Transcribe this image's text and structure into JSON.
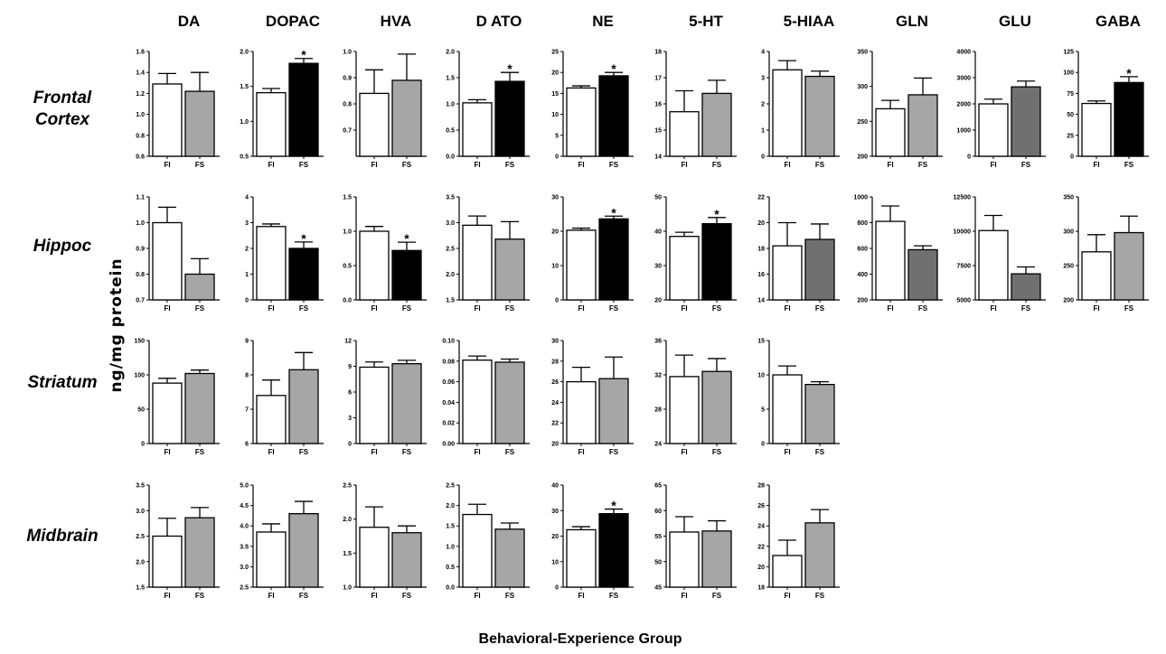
{
  "figure": {
    "ylabel": "ng/mg protein",
    "xlabel": "Behavioral-Experience Group",
    "columns": [
      "DA",
      "DOPAC",
      "HVA",
      "D ATO",
      "NE",
      "5-HT",
      "5-HIAA",
      "GLN",
      "GLU",
      "GABA"
    ],
    "rows": [
      "Frontal Cortex",
      "Hippoc",
      "Striatum",
      "Midbrain"
    ],
    "colors": {
      "FI": "#ffffff",
      "FS_ns": "#a6a6a6",
      "FS_dark": "#707070",
      "FS_sig": "#000000"
    }
  },
  "chart_data": [
    {
      "type": "bar",
      "row": "Frontal Cortex",
      "measure": "DA",
      "categories": [
        "FI",
        "FS"
      ],
      "values": [
        1.29,
        1.22
      ],
      "errors": [
        0.1,
        0.18
      ],
      "ylim": [
        0.6,
        1.6
      ],
      "yticks": [
        "0.6",
        "0.8",
        "1.0",
        "1.2",
        "1.4",
        "1.6"
      ],
      "significant": false,
      "fs_color": "#a6a6a6"
    },
    {
      "type": "bar",
      "row": "Frontal Cortex",
      "measure": "DOPAC",
      "categories": [
        "FI",
        "FS"
      ],
      "values": [
        1.41,
        1.83
      ],
      "errors": [
        0.06,
        0.07
      ],
      "ylim": [
        0.5,
        2.0
      ],
      "yticks": [
        "0.5",
        "1.0",
        "1.5",
        "2.0"
      ],
      "significant": true,
      "fs_color": "#000000"
    },
    {
      "type": "bar",
      "row": "Frontal Cortex",
      "measure": "HVA",
      "categories": [
        "FI",
        "FS"
      ],
      "values": [
        0.84,
        0.89
      ],
      "errors": [
        0.09,
        0.1
      ],
      "ylim": [
        0.6,
        1.0
      ],
      "yticks": [
        "0.7",
        "0.8",
        "0.9",
        "1.0"
      ],
      "significant": false,
      "fs_color": "#a6a6a6"
    },
    {
      "type": "bar",
      "row": "Frontal Cortex",
      "measure": "D ATO",
      "categories": [
        "FI",
        "FS"
      ],
      "values": [
        1.02,
        1.43
      ],
      "errors": [
        0.06,
        0.17
      ],
      "ylim": [
        0.0,
        2.0
      ],
      "yticks": [
        "0.0",
        "0.5",
        "1.0",
        "1.5",
        "2.0"
      ],
      "significant": true,
      "fs_color": "#000000"
    },
    {
      "type": "bar",
      "row": "Frontal Cortex",
      "measure": "NE",
      "categories": [
        "FI",
        "FS"
      ],
      "values": [
        16.3,
        19.2
      ],
      "errors": [
        0.5,
        0.8
      ],
      "ylim": [
        0,
        25
      ],
      "yticks": [
        "0",
        "5",
        "10",
        "15",
        "20",
        "25"
      ],
      "significant": true,
      "fs_color": "#000000"
    },
    {
      "type": "bar",
      "row": "Frontal Cortex",
      "measure": "5-HT",
      "categories": [
        "FI",
        "FS"
      ],
      "values": [
        15.7,
        16.4
      ],
      "errors": [
        0.8,
        0.5
      ],
      "ylim": [
        14,
        18
      ],
      "yticks": [
        "14",
        "15",
        "16",
        "17",
        "18"
      ],
      "significant": false,
      "fs_color": "#a6a6a6"
    },
    {
      "type": "bar",
      "row": "Frontal Cortex",
      "measure": "5-HIAA",
      "categories": [
        "FI",
        "FS"
      ],
      "values": [
        3.3,
        3.05
      ],
      "errors": [
        0.35,
        0.2
      ],
      "ylim": [
        0,
        4
      ],
      "yticks": [
        "0",
        "1",
        "2",
        "3",
        "4"
      ],
      "significant": false,
      "fs_color": "#a6a6a6"
    },
    {
      "type": "bar",
      "row": "Frontal Cortex",
      "measure": "GLN",
      "categories": [
        "FI",
        "FS"
      ],
      "values": [
        268,
        288
      ],
      "errors": [
        12,
        24
      ],
      "ylim": [
        200,
        350
      ],
      "yticks": [
        "200",
        "250",
        "300",
        "350"
      ],
      "significant": false,
      "fs_color": "#a6a6a6"
    },
    {
      "type": "bar",
      "row": "Frontal Cortex",
      "measure": "GLU",
      "categories": [
        "FI",
        "FS"
      ],
      "values": [
        2000,
        2650
      ],
      "errors": [
        180,
        220
      ],
      "ylim": [
        0,
        4000
      ],
      "yticks": [
        "0",
        "1000",
        "2000",
        "3000",
        "4000"
      ],
      "significant": false,
      "fs_color": "#707070"
    },
    {
      "type": "bar",
      "row": "Frontal Cortex",
      "measure": "GABA",
      "categories": [
        "FI",
        "FS"
      ],
      "values": [
        63,
        88
      ],
      "errors": [
        3,
        7
      ],
      "ylim": [
        0,
        125
      ],
      "yticks": [
        "0",
        "25",
        "50",
        "75",
        "100",
        "125"
      ],
      "significant": true,
      "fs_color": "#000000"
    },
    {
      "type": "bar",
      "row": "Hippoc",
      "measure": "DA",
      "categories": [
        "FI",
        "FS"
      ],
      "values": [
        1.0,
        0.8
      ],
      "errors": [
        0.06,
        0.06
      ],
      "ylim": [
        0.7,
        1.1
      ],
      "yticks": [
        "0.7",
        "0.8",
        "0.9",
        "1.0",
        "1.1"
      ],
      "significant": false,
      "fs_color": "#a6a6a6"
    },
    {
      "type": "bar",
      "row": "Hippoc",
      "measure": "DOPAC",
      "categories": [
        "FI",
        "FS"
      ],
      "values": [
        2.85,
        2.0
      ],
      "errors": [
        0.1,
        0.25
      ],
      "ylim": [
        0,
        4
      ],
      "yticks": [
        "0",
        "1",
        "2",
        "3",
        "4"
      ],
      "significant": true,
      "fs_color": "#000000"
    },
    {
      "type": "bar",
      "row": "Hippoc",
      "measure": "HVA",
      "categories": [
        "FI",
        "FS"
      ],
      "values": [
        1.0,
        0.72
      ],
      "errors": [
        0.07,
        0.12
      ],
      "ylim": [
        0.0,
        1.5
      ],
      "yticks": [
        "0.0",
        "0.5",
        "1.0",
        "1.5"
      ],
      "significant": true,
      "fs_color": "#000000"
    },
    {
      "type": "bar",
      "row": "Hippoc",
      "measure": "D ATO",
      "categories": [
        "FI",
        "FS"
      ],
      "values": [
        2.95,
        2.68
      ],
      "errors": [
        0.18,
        0.34
      ],
      "ylim": [
        1.5,
        3.5
      ],
      "yticks": [
        "1.5",
        "2.0",
        "2.5",
        "3.0",
        "3.5"
      ],
      "significant": false,
      "fs_color": "#a6a6a6"
    },
    {
      "type": "bar",
      "row": "Hippoc",
      "measure": "NE",
      "categories": [
        "FI",
        "FS"
      ],
      "values": [
        20.3,
        23.6
      ],
      "errors": [
        0.6,
        0.8
      ],
      "ylim": [
        0,
        30
      ],
      "yticks": [
        "0",
        "10",
        "20",
        "30"
      ],
      "significant": true,
      "fs_color": "#000000"
    },
    {
      "type": "bar",
      "row": "Hippoc",
      "measure": "5-HT",
      "categories": [
        "FI",
        "FS"
      ],
      "values": [
        38.5,
        42.2
      ],
      "errors": [
        1.2,
        1.8
      ],
      "ylim": [
        20,
        50
      ],
      "yticks": [
        "20",
        "30",
        "40",
        "50"
      ],
      "significant": true,
      "fs_color": "#000000"
    },
    {
      "type": "bar",
      "row": "Hippoc",
      "measure": "5-HIAA",
      "categories": [
        "FI",
        "FS"
      ],
      "values": [
        18.2,
        18.7
      ],
      "errors": [
        1.8,
        1.2
      ],
      "ylim": [
        14,
        22
      ],
      "yticks": [
        "14",
        "16",
        "18",
        "20",
        "22"
      ],
      "significant": false,
      "fs_color": "#707070"
    },
    {
      "type": "bar",
      "row": "Hippoc",
      "measure": "GLN",
      "categories": [
        "FI",
        "FS"
      ],
      "values": [
        810,
        590
      ],
      "errors": [
        120,
        30
      ],
      "ylim": [
        200,
        1000
      ],
      "yticks": [
        "200",
        "400",
        "600",
        "800",
        "1000"
      ],
      "significant": false,
      "fs_color": "#707070"
    },
    {
      "type": "bar",
      "row": "Hippoc",
      "measure": "GLU",
      "categories": [
        "FI",
        "FS"
      ],
      "values": [
        10050,
        6900
      ],
      "errors": [
        1100,
        500
      ],
      "ylim": [
        5000,
        12500
      ],
      "yticks": [
        "5000",
        "7500",
        "10000",
        "12500"
      ],
      "significant": false,
      "fs_color": "#707070"
    },
    {
      "type": "bar",
      "row": "Hippoc",
      "measure": "GABA",
      "categories": [
        "FI",
        "FS"
      ],
      "values": [
        270,
        298
      ],
      "errors": [
        25,
        24
      ],
      "ylim": [
        200,
        350
      ],
      "yticks": [
        "200",
        "250",
        "300",
        "350"
      ],
      "significant": false,
      "fs_color": "#a6a6a6"
    },
    {
      "type": "bar",
      "row": "Striatum",
      "measure": "DA",
      "categories": [
        "FI",
        "FS"
      ],
      "values": [
        88,
        102
      ],
      "errors": [
        7,
        5
      ],
      "ylim": [
        0,
        150
      ],
      "yticks": [
        "0",
        "50",
        "100",
        "150"
      ],
      "significant": false,
      "fs_color": "#a6a6a6"
    },
    {
      "type": "bar",
      "row": "Striatum",
      "measure": "DOPAC",
      "categories": [
        "FI",
        "FS"
      ],
      "values": [
        7.4,
        8.15
      ],
      "errors": [
        0.45,
        0.5
      ],
      "ylim": [
        6,
        9
      ],
      "yticks": [
        "6",
        "7",
        "8",
        "9"
      ],
      "significant": false,
      "fs_color": "#a6a6a6"
    },
    {
      "type": "bar",
      "row": "Striatum",
      "measure": "HVA",
      "categories": [
        "FI",
        "FS"
      ],
      "values": [
        8.9,
        9.3
      ],
      "errors": [
        0.6,
        0.4
      ],
      "ylim": [
        0,
        12
      ],
      "yticks": [
        "0",
        "3",
        "6",
        "9",
        "12"
      ],
      "significant": false,
      "fs_color": "#a6a6a6"
    },
    {
      "type": "bar",
      "row": "Striatum",
      "measure": "D ATO",
      "categories": [
        "FI",
        "FS"
      ],
      "values": [
        0.081,
        0.079
      ],
      "errors": [
        0.004,
        0.003
      ],
      "ylim": [
        0.0,
        0.1
      ],
      "yticks": [
        "0.00",
        "0.02",
        "0.04",
        "0.06",
        "0.08",
        "0.10"
      ],
      "significant": false,
      "fs_color": "#a6a6a6"
    },
    {
      "type": "bar",
      "row": "Striatum",
      "measure": "NE",
      "categories": [
        "FI",
        "FS"
      ],
      "values": [
        26.0,
        26.3
      ],
      "errors": [
        1.4,
        2.1
      ],
      "ylim": [
        20,
        30
      ],
      "yticks": [
        "20",
        "22",
        "24",
        "26",
        "28",
        "30"
      ],
      "significant": false,
      "fs_color": "#a6a6a6"
    },
    {
      "type": "bar",
      "row": "Striatum",
      "measure": "5-HT",
      "categories": [
        "FI",
        "FS"
      ],
      "values": [
        31.8,
        32.4
      ],
      "errors": [
        2.5,
        1.5
      ],
      "ylim": [
        24,
        36
      ],
      "yticks": [
        "24",
        "28",
        "32",
        "36"
      ],
      "significant": false,
      "fs_color": "#a6a6a6"
    },
    {
      "type": "bar",
      "row": "Striatum",
      "measure": "5-HIAA",
      "categories": [
        "FI",
        "FS"
      ],
      "values": [
        10.0,
        8.6
      ],
      "errors": [
        1.3,
        0.4
      ],
      "ylim": [
        0,
        15
      ],
      "yticks": [
        "0",
        "5",
        "10",
        "15"
      ],
      "significant": false,
      "fs_color": "#a6a6a6"
    },
    {
      "type": "bar",
      "row": "Midbrain",
      "measure": "DA",
      "categories": [
        "FI",
        "FS"
      ],
      "values": [
        2.5,
        2.86
      ],
      "errors": [
        0.35,
        0.2
      ],
      "ylim": [
        1.5,
        3.5
      ],
      "yticks": [
        "1.5",
        "2.0",
        "2.5",
        "3.0",
        "3.5"
      ],
      "significant": false,
      "fs_color": "#a6a6a6"
    },
    {
      "type": "bar",
      "row": "Midbrain",
      "measure": "DOPAC",
      "categories": [
        "FI",
        "FS"
      ],
      "values": [
        3.85,
        4.3
      ],
      "errors": [
        0.2,
        0.3
      ],
      "ylim": [
        2.5,
        5.0
      ],
      "yticks": [
        "2.5",
        "3.0",
        "3.5",
        "4.0",
        "4.5",
        "5.0"
      ],
      "significant": false,
      "fs_color": "#a6a6a6"
    },
    {
      "type": "bar",
      "row": "Midbrain",
      "measure": "HVA",
      "categories": [
        "FI",
        "FS"
      ],
      "values": [
        1.88,
        1.8
      ],
      "errors": [
        0.3,
        0.1
      ],
      "ylim": [
        1.0,
        2.5
      ],
      "yticks": [
        "1.0",
        "1.5",
        "2.0",
        "2.5"
      ],
      "significant": false,
      "fs_color": "#a6a6a6"
    },
    {
      "type": "bar",
      "row": "Midbrain",
      "measure": "D ATO",
      "categories": [
        "FI",
        "FS"
      ],
      "values": [
        1.78,
        1.42
      ],
      "errors": [
        0.25,
        0.15
      ],
      "ylim": [
        0.0,
        2.5
      ],
      "yticks": [
        "0.0",
        "0.5",
        "1.0",
        "1.5",
        "2.0",
        "2.5"
      ],
      "significant": false,
      "fs_color": "#a6a6a6"
    },
    {
      "type": "bar",
      "row": "Midbrain",
      "measure": "NE",
      "categories": [
        "FI",
        "FS"
      ],
      "values": [
        22.5,
        28.8
      ],
      "errors": [
        1.2,
        1.8
      ],
      "ylim": [
        0,
        40
      ],
      "yticks": [
        "0",
        "10",
        "20",
        "30",
        "40"
      ],
      "significant": true,
      "fs_color": "#000000"
    },
    {
      "type": "bar",
      "row": "Midbrain",
      "measure": "5-HT",
      "categories": [
        "FI",
        "FS"
      ],
      "values": [
        55.8,
        56.0
      ],
      "errors": [
        3.0,
        2.0
      ],
      "ylim": [
        45,
        65
      ],
      "yticks": [
        "45",
        "50",
        "55",
        "60",
        "65"
      ],
      "significant": false,
      "fs_color": "#a6a6a6"
    },
    {
      "type": "bar",
      "row": "Midbrain",
      "measure": "5-HIAA",
      "categories": [
        "FI",
        "FS"
      ],
      "values": [
        21.1,
        24.3
      ],
      "errors": [
        1.5,
        1.3
      ],
      "ylim": [
        18,
        28
      ],
      "yticks": [
        "18",
        "20",
        "22",
        "24",
        "26",
        "28"
      ],
      "significant": false,
      "fs_color": "#a6a6a6"
    }
  ]
}
